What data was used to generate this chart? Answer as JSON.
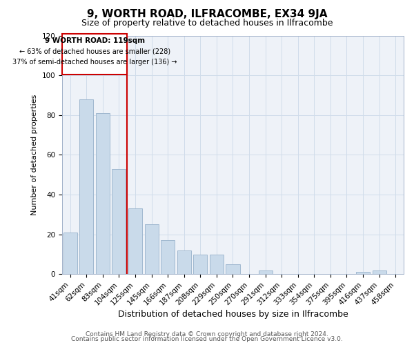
{
  "title": "9, WORTH ROAD, ILFRACOMBE, EX34 9JA",
  "subtitle": "Size of property relative to detached houses in Ilfracombe",
  "xlabel": "Distribution of detached houses by size in Ilfracombe",
  "ylabel": "Number of detached properties",
  "bar_labels": [
    "41sqm",
    "62sqm",
    "83sqm",
    "104sqm",
    "125sqm",
    "145sqm",
    "166sqm",
    "187sqm",
    "208sqm",
    "229sqm",
    "250sqm",
    "270sqm",
    "291sqm",
    "312sqm",
    "333sqm",
    "354sqm",
    "375sqm",
    "395sqm",
    "416sqm",
    "437sqm",
    "458sqm"
  ],
  "bar_values": [
    21,
    88,
    81,
    53,
    33,
    25,
    17,
    12,
    10,
    10,
    5,
    0,
    2,
    0,
    0,
    0,
    0,
    0,
    1,
    2,
    0
  ],
  "bar_color": "#c9daea",
  "bar_edge_color": "#a0b8d0",
  "marker_line_color": "#cc0000",
  "marker_label": "9 WORTH ROAD: 119sqm",
  "annotation_line1": "← 63% of detached houses are smaller (228)",
  "annotation_line2": "37% of semi-detached houses are larger (136) →",
  "annotation_box_edge": "#cc0000",
  "ylim": [
    0,
    120
  ],
  "yticks": [
    0,
    20,
    40,
    60,
    80,
    100,
    120
  ],
  "grid_color": "#d0dcea",
  "bg_color": "#eef2f8",
  "footer1": "Contains HM Land Registry data © Crown copyright and database right 2024.",
  "footer2": "Contains public sector information licensed under the Open Government Licence v3.0.",
  "title_fontsize": 11,
  "subtitle_fontsize": 9,
  "xlabel_fontsize": 9,
  "ylabel_fontsize": 8,
  "tick_fontsize": 7.5,
  "footer_fontsize": 6.5,
  "red_line_after_bar": 3
}
